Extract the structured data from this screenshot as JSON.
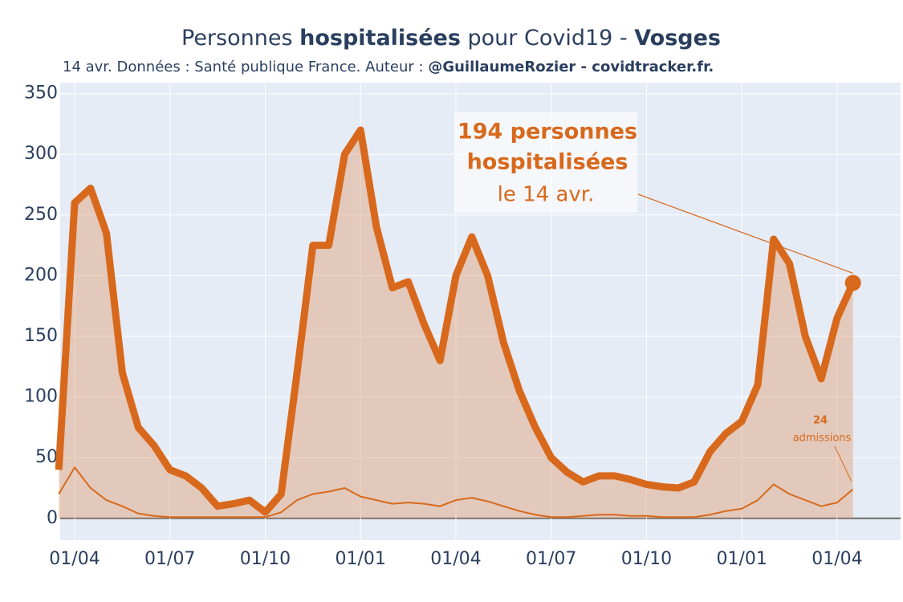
{
  "chart_data": {
    "type": "line",
    "title": [
      {
        "text": "Personnes ",
        "bold": false
      },
      {
        "text": "hospitalisées",
        "bold": true
      },
      {
        "text": " pour Covid19 - ",
        "bold": false
      },
      {
        "text": "Vosges",
        "bold": true
      }
    ],
    "subtitle": [
      {
        "text": "14 avr. Données : Santé publique France. Auteur : ",
        "bold": false
      },
      {
        "text": "@GuillaumeRozier - covidtracker.fr.",
        "bold": true
      }
    ],
    "categories": [
      null,
      "01/04",
      null,
      null,
      null,
      null,
      null,
      "01/07",
      null,
      null,
      null,
      null,
      null,
      "01/10",
      null,
      null,
      null,
      null,
      null,
      "01/01",
      null,
      null,
      null,
      null,
      null,
      "01/04",
      null,
      null,
      null,
      null,
      null,
      "01/07",
      null,
      null,
      null,
      null,
      null,
      "01/10",
      null,
      null,
      null,
      null,
      null,
      "01/01",
      null,
      null,
      null,
      null,
      null,
      "01/04",
      null
    ],
    "series": [
      {
        "name": "hospitalisées",
        "color": "#d8691c",
        "fill": "rgba(222,150,100,0.4)",
        "values": [
          40,
          260,
          272,
          235,
          120,
          75,
          60,
          40,
          35,
          25,
          10,
          12,
          15,
          5,
          20,
          120,
          225,
          225,
          300,
          320,
          240,
          190,
          195,
          160,
          130,
          200,
          232,
          200,
          145,
          105,
          75,
          50,
          38,
          30,
          35,
          35,
          32,
          28,
          26,
          25,
          30,
          55,
          70,
          80,
          110,
          230,
          210,
          150,
          115,
          165,
          194
        ]
      },
      {
        "name": "admissions",
        "color": "#d8691c",
        "values": [
          20,
          42,
          25,
          15,
          10,
          4,
          2,
          1,
          1,
          1,
          1,
          1,
          1,
          1,
          5,
          15,
          20,
          22,
          25,
          18,
          15,
          12,
          13,
          12,
          10,
          15,
          17,
          14,
          10,
          6,
          3,
          1,
          1,
          2,
          3,
          3,
          2,
          2,
          1,
          1,
          1,
          3,
          6,
          8,
          15,
          28,
          20,
          15,
          10,
          13,
          24
        ]
      }
    ],
    "ylim": [
      -18,
      359
    ],
    "yticks": [
      0,
      50,
      100,
      150,
      200,
      250,
      300,
      350
    ],
    "grid": true,
    "annotation_main": [
      "194 personnes",
      "hospitalisées"
    ],
    "annotation_date": "le 14 avr.",
    "admissions_label": "admissions"
  }
}
